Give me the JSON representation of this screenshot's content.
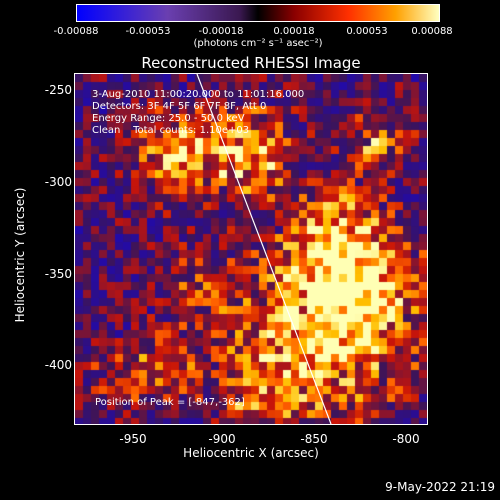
{
  "colorbar": {
    "ticks": [
      "-0.00088",
      "-0.00053",
      "-0.00018",
      "0.00018",
      "0.00053",
      "0.00088"
    ],
    "unit": "(photons cm⁻² s⁻¹ asec⁻²)"
  },
  "plot": {
    "title": "Reconstructed RHESSI Image",
    "xlabel": "Heliocentric X (arcsec)",
    "ylabel": "Heliocentric Y (arcsec)",
    "xticks": [
      "-950",
      "-900",
      "-850",
      "-800"
    ],
    "yticks": [
      "-250",
      "-300",
      "-350",
      "-400"
    ],
    "xlim": [
      -978,
      -788
    ],
    "ylim": [
      -430,
      -239
    ],
    "info_line1": "3-Aug-2010 11:00:20.000 to 11:01:16.000",
    "info_line2": "Detectors: 3F 4F 5F 6F 7F 8F, Att 0",
    "info_line3": "Energy Range: 25.0 - 50.0 keV",
    "info_line4": "Clean    Total counts: 1.10e+03",
    "peak_label": "Position of Peak = [-847,-362]"
  },
  "footer": {
    "timestamp": "9-May-2022 21:19"
  }
}
